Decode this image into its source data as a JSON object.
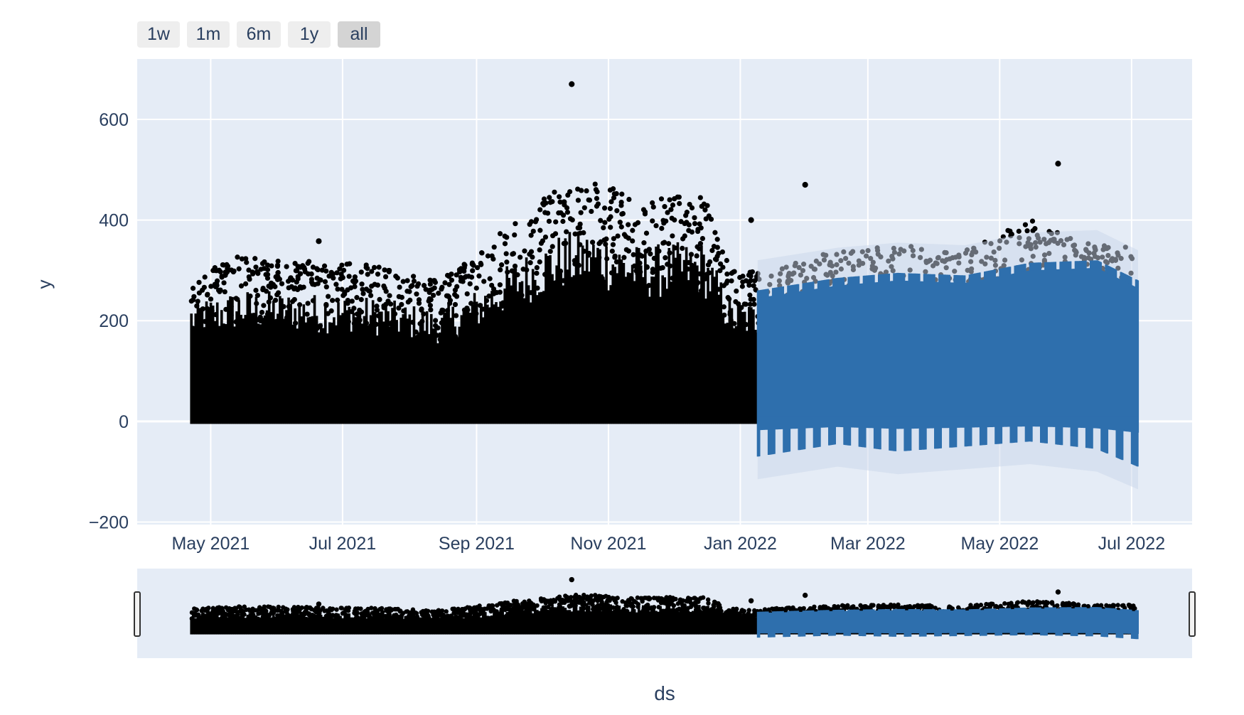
{
  "range_selector": {
    "buttons": [
      {
        "label": "1w",
        "active": false
      },
      {
        "label": "1m",
        "active": false
      },
      {
        "label": "6m",
        "active": false
      },
      {
        "label": "1y",
        "active": false
      },
      {
        "label": "all",
        "active": true
      }
    ]
  },
  "colors": {
    "plot_bg": "#e5ecf6",
    "grid": "#ffffff",
    "actual_points": "#000000",
    "forecast_line": "#2e6fad",
    "forecast_band": "#c9d6ea",
    "axis_text": "#2a3f5f",
    "button_bg": "#eeeeee",
    "button_active_bg": "#d4d4d4"
  },
  "chart_data": {
    "type": "scatter",
    "title": "",
    "xlabel": "ds",
    "ylabel": "y",
    "x_range": [
      "2021-03-28",
      "2022-07-29"
    ],
    "ylim": [
      -205,
      720
    ],
    "x_ticks": [
      {
        "date": "2021-05-01",
        "label": "May 2021"
      },
      {
        "date": "2021-07-01",
        "label": "Jul 2021"
      },
      {
        "date": "2021-09-01",
        "label": "Sep 2021"
      },
      {
        "date": "2021-11-01",
        "label": "Nov 2021"
      },
      {
        "date": "2022-01-01",
        "label": "Jan 2022"
      },
      {
        "date": "2022-03-01",
        "label": "Mar 2022"
      },
      {
        "date": "2022-05-01",
        "label": "May 2022"
      },
      {
        "date": "2022-07-01",
        "label": "Jul 2022"
      }
    ],
    "y_ticks": [
      -200,
      0,
      200,
      400,
      600
    ],
    "grid": true,
    "series": [
      {
        "kind": "actual",
        "x_start": "2021-04-22",
        "x_end": "2022-07-03",
        "y_min": 0,
        "upper_envelope": [
          {
            "date": "2021-04-22",
            "y": 300
          },
          {
            "date": "2021-05-15",
            "y": 330
          },
          {
            "date": "2021-06-15",
            "y": 320
          },
          {
            "date": "2021-07-15",
            "y": 310
          },
          {
            "date": "2021-08-15",
            "y": 280
          },
          {
            "date": "2021-09-01",
            "y": 330
          },
          {
            "date": "2021-09-20",
            "y": 410
          },
          {
            "date": "2021-10-10",
            "y": 470
          },
          {
            "date": "2021-10-25",
            "y": 480
          },
          {
            "date": "2021-11-15",
            "y": 440
          },
          {
            "date": "2021-12-15",
            "y": 450
          },
          {
            "date": "2021-12-28",
            "y": 300
          },
          {
            "date": "2022-01-15",
            "y": 300
          },
          {
            "date": "2022-02-15",
            "y": 340
          },
          {
            "date": "2022-03-15",
            "y": 350
          },
          {
            "date": "2022-04-15",
            "y": 340
          },
          {
            "date": "2022-05-15",
            "y": 400
          },
          {
            "date": "2022-06-15",
            "y": 350
          },
          {
            "date": "2022-07-03",
            "y": 350
          }
        ],
        "outliers": [
          {
            "date": "2021-10-15",
            "y": 670
          },
          {
            "date": "2022-01-31",
            "y": 470
          },
          {
            "date": "2022-05-28",
            "y": 512
          },
          {
            "date": "2021-06-20",
            "y": 358
          },
          {
            "date": "2022-01-06",
            "y": 400
          }
        ]
      },
      {
        "kind": "forecast",
        "x_start": "2022-01-09",
        "x_end": "2022-07-04",
        "period_days": 7,
        "daily_upper": [
          {
            "date": "2022-01-09",
            "y": 260
          },
          {
            "date": "2022-02-15",
            "y": 285
          },
          {
            "date": "2022-03-15",
            "y": 295
          },
          {
            "date": "2022-04-15",
            "y": 290
          },
          {
            "date": "2022-05-15",
            "y": 315
          },
          {
            "date": "2022-06-15",
            "y": 320
          },
          {
            "date": "2022-07-04",
            "y": 280
          }
        ],
        "daily_lower": [
          {
            "date": "2022-01-09",
            "y": -70
          },
          {
            "date": "2022-02-15",
            "y": -45
          },
          {
            "date": "2022-03-15",
            "y": -60
          },
          {
            "date": "2022-04-15",
            "y": -50
          },
          {
            "date": "2022-05-15",
            "y": -40
          },
          {
            "date": "2022-06-15",
            "y": -55
          },
          {
            "date": "2022-07-04",
            "y": -90
          }
        ]
      }
    ]
  }
}
